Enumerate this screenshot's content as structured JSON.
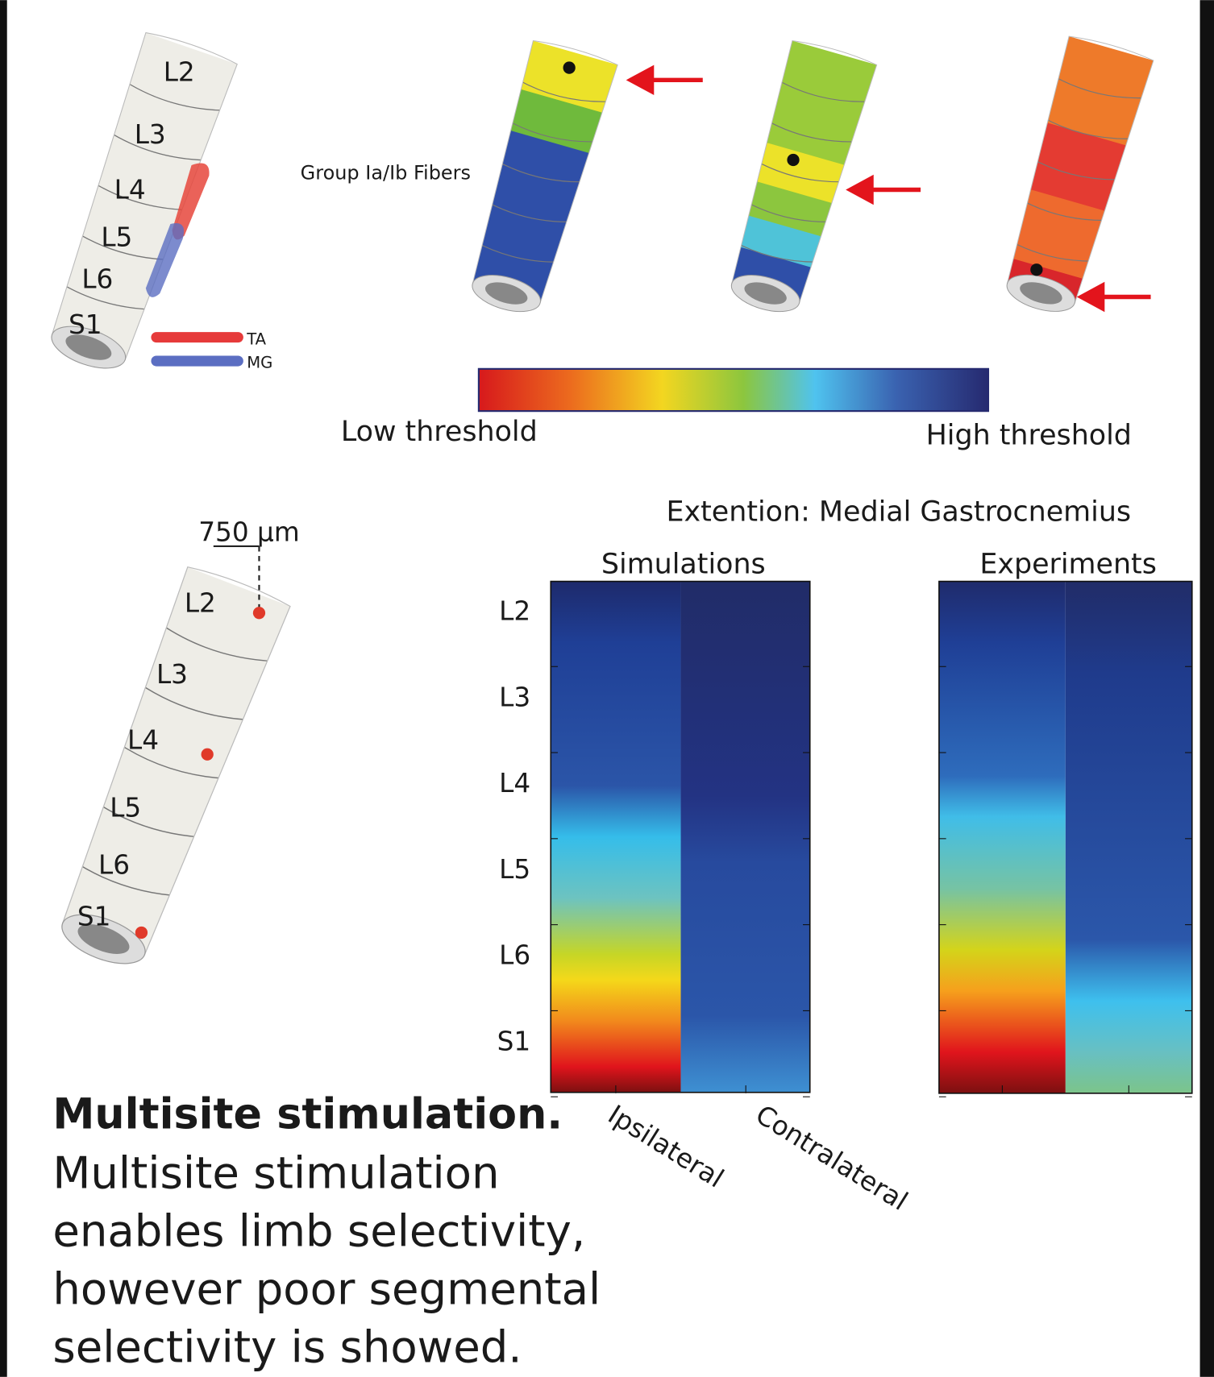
{
  "panel_a": {
    "segments": [
      "L2",
      "L3",
      "L4",
      "L5",
      "L6",
      "S1"
    ],
    "legend": [
      "TA",
      "MG"
    ]
  },
  "panel_b": {
    "label": "Group Ia/Ib Fibers",
    "colorbar": {
      "low": "Low threshold",
      "high": "High threshold"
    }
  },
  "panel_c": {
    "scale": "750 µm",
    "segments": [
      "L2",
      "L3",
      "L4",
      "L5",
      "L6",
      "S1"
    ]
  },
  "panel_d": {
    "title": "Extention: Medial Gastrocnemius",
    "panels": [
      "Simulations",
      "Experiments"
    ],
    "rows": [
      "L2",
      "L3",
      "L4",
      "L5",
      "L6",
      "S1"
    ],
    "columns": [
      "Ipsilateral",
      "Contralateral"
    ]
  },
  "caption": {
    "title": "Multisite stimulation.",
    "lines": [
      "Multisite stimulation",
      "enables limb selectivity,",
      "however poor segmental",
      "selectivity is showed."
    ]
  }
}
